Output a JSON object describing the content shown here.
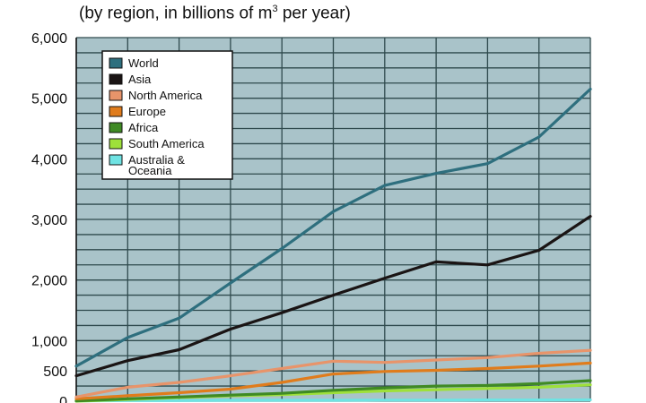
{
  "chart_data": {
    "type": "line",
    "title": "",
    "subtitle": "(by region, in billions of m",
    "subtitle_superscript": "3",
    "subtitle_suffix": " per year)",
    "xlabel": "",
    "ylabel": "",
    "x": [
      0,
      1,
      2,
      3,
      4,
      5,
      6,
      7,
      8,
      9,
      10
    ],
    "ylim": [
      0,
      6000
    ],
    "y_ticks": [
      {
        "value": 0,
        "label": "0"
      },
      {
        "value": 500,
        "label": "500"
      },
      {
        "value": 1000,
        "label": "1,000"
      },
      {
        "value": 2000,
        "label": "2,000"
      },
      {
        "value": 3000,
        "label": "3,000"
      },
      {
        "value": 4000,
        "label": "4,000"
      },
      {
        "value": 5000,
        "label": "5,000"
      },
      {
        "value": 6000,
        "label": "6,000"
      }
    ],
    "grid": true,
    "plot_background": "#a9c3c9",
    "grid_color": "#2f4a4d",
    "legend_position": "top-left",
    "series": [
      {
        "name": "World",
        "color": "#2e6f7e",
        "values": [
          580,
          1050,
          1370,
          1950,
          2520,
          3130,
          3560,
          3760,
          3920,
          4360,
          5150
        ]
      },
      {
        "name": "Asia",
        "color": "#1a1414",
        "values": [
          420,
          670,
          850,
          1190,
          1460,
          1750,
          2030,
          2300,
          2250,
          2490,
          3050
        ]
      },
      {
        "name": "North America",
        "color": "#e8946a",
        "values": [
          70,
          230,
          310,
          420,
          540,
          660,
          640,
          680,
          720,
          790,
          840
        ]
      },
      {
        "name": "Europe",
        "color": "#e07c1c",
        "values": [
          40,
          90,
          140,
          200,
          310,
          450,
          490,
          510,
          540,
          580,
          630
        ]
      },
      {
        "name": "Africa",
        "color": "#3f8a24",
        "values": [
          5,
          40,
          70,
          100,
          130,
          180,
          220,
          250,
          260,
          290,
          340
        ]
      },
      {
        "name": "South America",
        "color": "#9ee03a",
        "values": [
          0,
          30,
          60,
          90,
          110,
          140,
          170,
          190,
          210,
          230,
          270
        ]
      },
      {
        "name": "Australia & Oceania",
        "label_lines": [
          "Australia &",
          "Oceania"
        ],
        "color": "#6fe3e3",
        "values": [
          5,
          10,
          10,
          15,
          15,
          15,
          18,
          18,
          20,
          20,
          22
        ]
      }
    ]
  }
}
